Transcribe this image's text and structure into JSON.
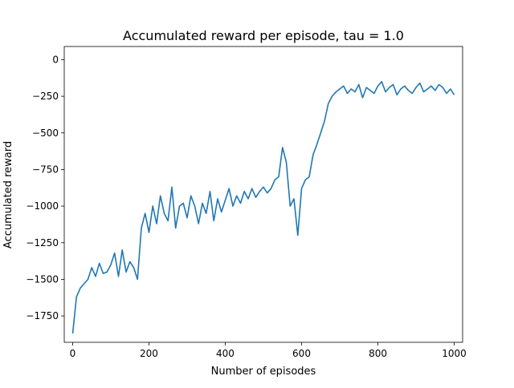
{
  "chart_data": {
    "type": "line",
    "title": "Accumulated reward per episode, tau = 1.0",
    "xlabel": "Number of episodes",
    "ylabel": "Accumulated reward",
    "xlim": [
      -22,
      1022
    ],
    "ylim": [
      -1930,
      90
    ],
    "x_ticks": [
      0,
      200,
      400,
      600,
      800,
      1000
    ],
    "x_tick_labels": [
      "0",
      "200",
      "400",
      "600",
      "800",
      "1000"
    ],
    "y_ticks": [
      0,
      -250,
      -500,
      -750,
      -1000,
      -1250,
      -1500,
      -1750
    ],
    "y_tick_labels": [
      "0",
      "−250",
      "−500",
      "−750",
      "−1000",
      "−1250",
      "−1500",
      "−1750"
    ],
    "grid": false,
    "legend": false,
    "series": [
      {
        "color": "#1f77b4",
        "x": [
          0,
          10,
          20,
          30,
          40,
          50,
          60,
          70,
          80,
          90,
          100,
          110,
          120,
          130,
          140,
          150,
          160,
          170,
          180,
          190,
          200,
          210,
          220,
          230,
          240,
          250,
          260,
          270,
          280,
          290,
          300,
          310,
          320,
          330,
          340,
          350,
          360,
          370,
          380,
          390,
          400,
          410,
          420,
          430,
          440,
          450,
          460,
          470,
          480,
          490,
          500,
          510,
          520,
          530,
          540,
          550,
          560,
          570,
          580,
          590,
          600,
          610,
          620,
          630,
          640,
          650,
          660,
          670,
          680,
          690,
          700,
          710,
          720,
          730,
          740,
          750,
          760,
          770,
          780,
          790,
          800,
          810,
          820,
          830,
          840,
          850,
          860,
          870,
          880,
          890,
          900,
          910,
          920,
          930,
          940,
          950,
          960,
          970,
          980,
          990,
          1000
        ],
        "y": [
          -1870,
          -1620,
          -1560,
          -1530,
          -1500,
          -1420,
          -1480,
          -1390,
          -1460,
          -1450,
          -1400,
          -1320,
          -1480,
          -1300,
          -1450,
          -1380,
          -1420,
          -1500,
          -1150,
          -1050,
          -1180,
          -1000,
          -1120,
          -930,
          -1050,
          -1100,
          -870,
          -1150,
          -1000,
          -980,
          -1080,
          -930,
          -1000,
          -1120,
          -980,
          -1050,
          -900,
          -1100,
          -950,
          -1040,
          -960,
          -880,
          -1000,
          -930,
          -980,
          -900,
          -950,
          -880,
          -940,
          -900,
          -870,
          -910,
          -880,
          -820,
          -800,
          -600,
          -700,
          -1000,
          -950,
          -1200,
          -880,
          -820,
          -800,
          -650,
          -580,
          -500,
          -420,
          -300,
          -250,
          -220,
          -200,
          -180,
          -230,
          -200,
          -220,
          -170,
          -260,
          -190,
          -210,
          -230,
          -180,
          -150,
          -220,
          -190,
          -170,
          -240,
          -200,
          -180,
          -210,
          -230,
          -190,
          -160,
          -220,
          -200,
          -180,
          -210,
          -170,
          -190,
          -230,
          -200,
          -240
        ]
      }
    ]
  }
}
